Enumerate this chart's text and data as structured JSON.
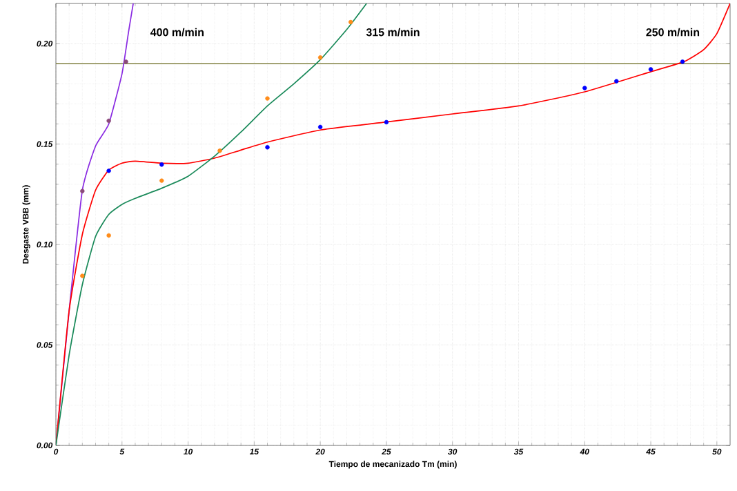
{
  "chart_data": {
    "type": "line",
    "xlabel": "Tiempo de mecanizado Tm (min)",
    "ylabel": "Desgaste VBB (mm)",
    "xlim": [
      0,
      51
    ],
    "ylim": [
      0,
      0.22
    ],
    "xticks": [
      0,
      5,
      10,
      15,
      20,
      25,
      30,
      35,
      40,
      45,
      50
    ],
    "yticks": [
      {
        "value": 0,
        "label": "0.00"
      },
      {
        "value": 0.05,
        "label": "0.05"
      },
      {
        "value": 0.1,
        "label": "0.10"
      },
      {
        "value": 0.15,
        "label": "0.15"
      },
      {
        "value": 0.2,
        "label": "0.20"
      }
    ],
    "grid": true,
    "series": [
      {
        "color": "#8a2be2",
        "marker": "none",
        "x": [
          0,
          1,
          2,
          3,
          4,
          5,
          5.5,
          5.85
        ],
        "values": [
          0,
          0.067,
          0.127,
          0.149,
          0.16,
          0.185,
          0.206,
          0.22
        ]
      },
      {
        "color": "#ff0000",
        "marker": "none",
        "x": [
          0,
          1,
          2,
          3,
          4,
          5,
          6,
          8,
          10,
          12,
          14,
          16,
          20,
          25,
          30,
          35,
          40,
          45,
          47.5,
          49,
          50,
          51
        ],
        "values": [
          0,
          0.067,
          0.105,
          0.127,
          0.137,
          0.1405,
          0.1415,
          0.1405,
          0.1405,
          0.143,
          0.147,
          0.151,
          0.157,
          0.161,
          0.165,
          0.169,
          0.176,
          0.186,
          0.191,
          0.197,
          0.205,
          0.22
        ]
      },
      {
        "color": "#1a8a5a",
        "marker": "none",
        "x": [
          0,
          1,
          2,
          3,
          4,
          5,
          6,
          8,
          10,
          12,
          14,
          16,
          18,
          20,
          22,
          23.5
        ],
        "values": [
          0,
          0.045,
          0.08,
          0.104,
          0.115,
          0.12,
          0.123,
          0.128,
          0.134,
          0.144,
          0.156,
          0.169,
          0.18,
          0.192,
          0.207,
          0.22
        ]
      },
      {
        "type": "scatter",
        "color": "#8b4a7a",
        "marker": "circle",
        "x": [
          2,
          4,
          5.3
        ],
        "values": [
          0.1266,
          0.1616,
          0.191
        ]
      },
      {
        "type": "scatter",
        "color": "#0000ff",
        "marker": "circle",
        "x": [
          4,
          8,
          16,
          20,
          25,
          40,
          42.4,
          45,
          47.4
        ],
        "values": [
          0.1367,
          0.1398,
          0.1484,
          0.1585,
          0.1609,
          0.1779,
          0.1813,
          0.1872,
          0.191
        ]
      },
      {
        "type": "scatter",
        "color": "#ff8c1a",
        "marker": "circle",
        "x": [
          2,
          4,
          8,
          12.4,
          16,
          20,
          22.3
        ],
        "values": [
          0.0844,
          0.1045,
          0.1318,
          0.1467,
          0.1727,
          0.1931,
          0.2107
        ]
      }
    ],
    "ref_lines": [
      {
        "axis": "y",
        "value": 0.19,
        "color": "#808040"
      }
    ],
    "annotations": [
      "400 m/min",
      "315 m/min",
      "250 m/min"
    ]
  }
}
